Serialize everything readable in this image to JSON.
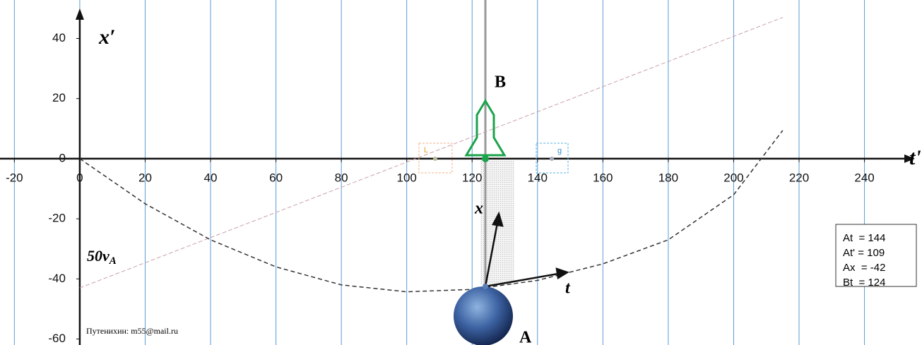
{
  "chart_data": {
    "type": "line",
    "x_label": "t'",
    "y_label": "x′",
    "xlim": [
      -24.4,
      257.6
    ],
    "ylim": [
      -62.0,
      52.8
    ],
    "xticks": [
      -20,
      0,
      20,
      40,
      60,
      80,
      100,
      120,
      140,
      160,
      180,
      200,
      220,
      240
    ],
    "yticks": [
      -60,
      -40,
      -20,
      0,
      20,
      40
    ],
    "grid": true,
    "grid_color": "#5b9bd5",
    "series": [
      {
        "color": "#c9a0a8",
        "x": [
          0,
          215
        ],
        "values": [
          -43,
          47
        ]
      },
      {
        "color": "#333333",
        "x": [
          0,
          20,
          40,
          60,
          80,
          100,
          120,
          140,
          160,
          180,
          200,
          215
        ],
        "values": [
          0,
          -15,
          -27,
          -36,
          -42,
          -44.3,
          -43.5,
          -40.5,
          -35,
          -27,
          -12,
          9.4
        ]
      }
    ],
    "labels": {
      "B": "B",
      "A": "A",
      "x": "x",
      "t": "t",
      "velocity": "50v",
      "velocity_sub": "A",
      "L": "L",
      "g": "g",
      "author": "Путенихин: m55@mail.ru"
    },
    "info_box": [
      "At  = 144",
      "At' = 109",
      "Ax  = -42",
      "Bt  = 124"
    ]
  }
}
